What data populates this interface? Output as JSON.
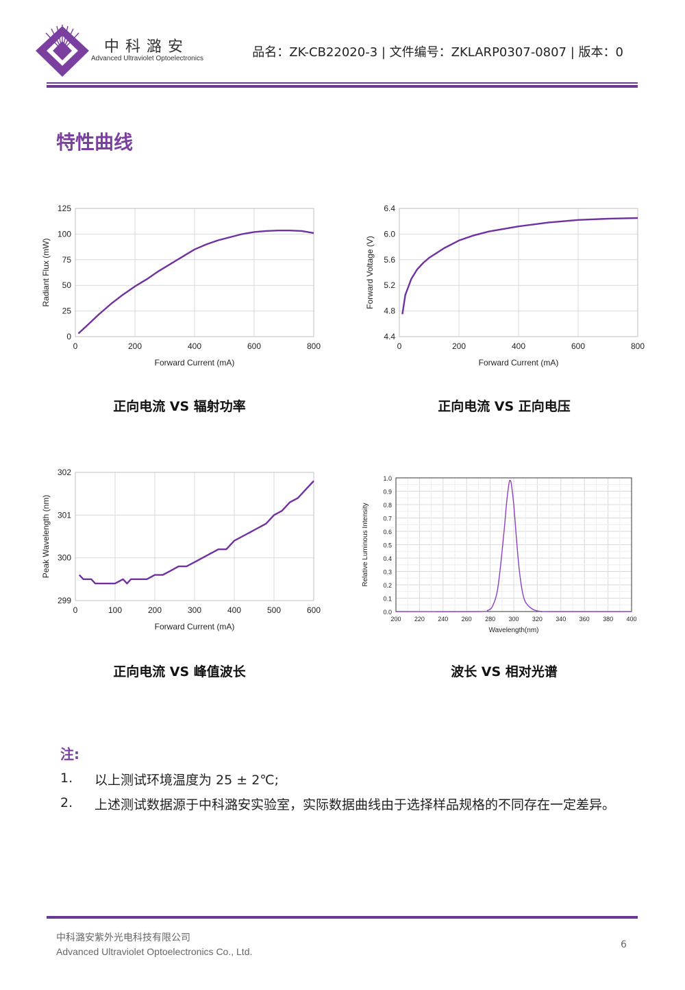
{
  "header": {
    "company_cn": "中科潞安",
    "company_en": "Advanced Ultraviolet Optoelectronics",
    "doc_info": "品名：ZK-CB22020-3 | 文件编号：ZKLARP0307-0807 | 版本：0",
    "brand_color": "#6a3a93"
  },
  "section_title": "特性曲线",
  "captions": {
    "c1": "正向电流 VS 辐射功率",
    "c2": "正向电流 VS 正向电压",
    "c3": "正向电流 VS 峰值波长",
    "c4": "波长 VS 相对光谱"
  },
  "notes": {
    "title": "注:",
    "items": [
      {
        "num": "1.",
        "text": "以上测试环境温度为 25 ± 2℃;"
      },
      {
        "num": "2.",
        "text": "上述测试数据源于中科潞安实验室，实际数据曲线由于选择样品规格的不同存在一定差异。"
      }
    ]
  },
  "footer": {
    "company_cn": "中科潞安紫外光电科技有限公司",
    "company_en": "Advanced Ultraviolet Optoelectronics Co., Ltd.",
    "page": "6"
  },
  "chart_data": [
    {
      "type": "line",
      "xlabel": "Forward Current (mA)",
      "ylabel": "Radiant Flux (mW)",
      "xlim": [
        0,
        800
      ],
      "ylim": [
        0,
        125
      ],
      "xticks": [
        0,
        200,
        400,
        600,
        800
      ],
      "yticks": [
        0,
        25,
        50,
        75,
        100,
        125
      ],
      "grid": true,
      "color": "#7030a0",
      "x": [
        10,
        40,
        80,
        120,
        160,
        200,
        240,
        280,
        320,
        360,
        400,
        440,
        480,
        520,
        560,
        600,
        640,
        680,
        720,
        760,
        800
      ],
      "y": [
        3,
        11,
        22,
        32,
        41,
        49,
        56,
        64,
        71,
        78,
        85,
        90,
        94,
        97,
        100,
        102,
        103,
        103.5,
        103.5,
        103,
        101
      ]
    },
    {
      "type": "line",
      "xlabel": "Forward Current (mA)",
      "ylabel": "Forward Voltage (V)",
      "xlim": [
        0,
        800
      ],
      "ylim": [
        4.4,
        6.4
      ],
      "xticks": [
        0,
        200,
        400,
        600,
        800
      ],
      "yticks": [
        4.4,
        4.8,
        5.2,
        5.6,
        6.0,
        6.4
      ],
      "grid": true,
      "color": "#7030a0",
      "x": [
        10,
        20,
        40,
        60,
        80,
        100,
        150,
        200,
        250,
        300,
        400,
        500,
        600,
        700,
        800
      ],
      "y": [
        4.75,
        5.05,
        5.3,
        5.45,
        5.55,
        5.63,
        5.78,
        5.9,
        5.98,
        6.04,
        6.12,
        6.18,
        6.22,
        6.24,
        6.25
      ]
    },
    {
      "type": "line",
      "xlabel": "Forward Current (mA)",
      "ylabel": "Peak Wavelength (nm)",
      "xlim": [
        0,
        600
      ],
      "ylim": [
        299,
        302
      ],
      "xticks": [
        0,
        100,
        200,
        300,
        400,
        500,
        600
      ],
      "yticks": [
        299,
        300,
        301,
        302
      ],
      "grid": true,
      "color": "#7030a0",
      "x": [
        10,
        20,
        30,
        40,
        50,
        60,
        80,
        100,
        120,
        130,
        140,
        150,
        180,
        200,
        220,
        240,
        260,
        280,
        300,
        320,
        340,
        360,
        380,
        400,
        420,
        440,
        460,
        480,
        500,
        520,
        540,
        560,
        580,
        600
      ],
      "y": [
        299.6,
        299.5,
        299.5,
        299.5,
        299.4,
        299.4,
        299.4,
        299.4,
        299.5,
        299.4,
        299.5,
        299.5,
        299.5,
        299.6,
        299.6,
        299.7,
        299.8,
        299.8,
        299.9,
        300.0,
        300.1,
        300.2,
        300.2,
        300.4,
        300.5,
        300.6,
        300.7,
        300.8,
        301.0,
        301.1,
        301.3,
        301.4,
        301.6,
        301.8
      ]
    },
    {
      "type": "line",
      "xlabel": "Wavelength(nm)",
      "ylabel": "Relative Luminous Intensity",
      "xlim": [
        200,
        400
      ],
      "ylim": [
        0,
        1.0
      ],
      "xticks": [
        200,
        220,
        240,
        260,
        280,
        300,
        320,
        340,
        360,
        380,
        400
      ],
      "yticks": [
        0.0,
        0.1,
        0.2,
        0.3,
        0.4,
        0.5,
        0.6,
        0.7,
        0.8,
        0.9,
        1.0
      ],
      "grid": true,
      "color": "#8b3fc0",
      "peak": 297,
      "x": [
        200,
        270,
        278,
        282,
        286,
        289,
        292,
        294,
        296,
        297,
        298,
        300,
        302,
        304,
        306,
        308,
        310,
        314,
        318,
        324,
        330,
        400
      ],
      "y": [
        0.0,
        0.0,
        0.01,
        0.04,
        0.15,
        0.36,
        0.62,
        0.82,
        0.96,
        0.98,
        0.95,
        0.8,
        0.58,
        0.37,
        0.22,
        0.12,
        0.07,
        0.03,
        0.01,
        0.0,
        0.0,
        0.0
      ]
    }
  ]
}
